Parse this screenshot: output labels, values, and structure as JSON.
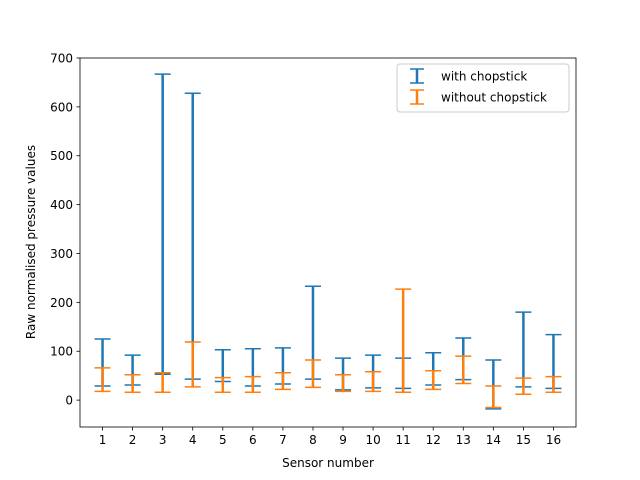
{
  "chart_data": {
    "type": "errorbar",
    "title": "",
    "xlabel": "Sensor number",
    "ylabel": "Raw normalised pressure values",
    "categories": [
      "1",
      "2",
      "3",
      "4",
      "5",
      "6",
      "7",
      "8",
      "9",
      "10",
      "11",
      "12",
      "13",
      "14",
      "15",
      "16"
    ],
    "x": [
      1,
      2,
      3,
      4,
      5,
      6,
      7,
      8,
      9,
      10,
      11,
      12,
      13,
      14,
      15,
      16
    ],
    "xlim": [
      0.25,
      16.75
    ],
    "ylim": [
      -55,
      700
    ],
    "yticks": [
      0,
      100,
      200,
      300,
      400,
      500,
      600,
      700
    ],
    "grid": false,
    "legend_position": "top-right",
    "series": [
      {
        "name": "with chopstick",
        "color": "#1f77b4",
        "lower": [
          29,
          31,
          53,
          43,
          38,
          29,
          33,
          43,
          21,
          25,
          24,
          31,
          42,
          -18,
          27,
          24
        ],
        "upper": [
          125,
          92,
          667,
          628,
          103,
          105,
          107,
          233,
          86,
          92,
          86,
          97,
          127,
          82,
          180,
          134
        ]
      },
      {
        "name": "without chopstick",
        "color": "#ff7f0e",
        "lower": [
          18,
          16,
          16,
          27,
          16,
          16,
          22,
          26,
          18,
          18,
          16,
          22,
          34,
          -15,
          12,
          16
        ],
        "upper": [
          66,
          52,
          56,
          119,
          46,
          48,
          56,
          82,
          52,
          58,
          227,
          60,
          90,
          29,
          45,
          48
        ]
      }
    ]
  }
}
